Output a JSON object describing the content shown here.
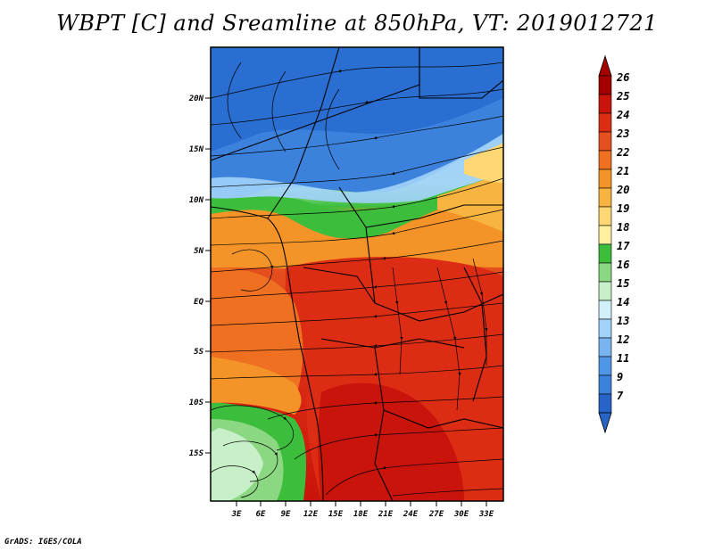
{
  "title": "WBPT [C] and Sreamline at 850hPa, VT: 2019012721",
  "footer": "GrADS: IGES/COLA",
  "lat_labels": [
    "20N",
    "15N",
    "10N",
    "5N",
    "EQ",
    "5S",
    "10S",
    "15S"
  ],
  "lon_labels": [
    "3E",
    "6E",
    "9E",
    "12E",
    "15E",
    "18E",
    "21E",
    "24E",
    "27E",
    "30E",
    "33E"
  ],
  "colorbar": {
    "labels": [
      "26",
      "25",
      "24",
      "23",
      "22",
      "21",
      "20",
      "19",
      "18",
      "17",
      "16",
      "15",
      "14",
      "13",
      "12",
      "11",
      "9",
      "7"
    ],
    "colors": [
      "#a50000",
      "#c8140a",
      "#dc2d14",
      "#e6501e",
      "#ee7020",
      "#f49428",
      "#f8b440",
      "#fcd774",
      "#fff0a0",
      "#3cbe3c",
      "#8cd782",
      "#c8f0c8",
      "#d2f0fa",
      "#a0d2fa",
      "#78b4f0",
      "#5096e6",
      "#3c82dc",
      "#2864c8"
    ]
  }
}
